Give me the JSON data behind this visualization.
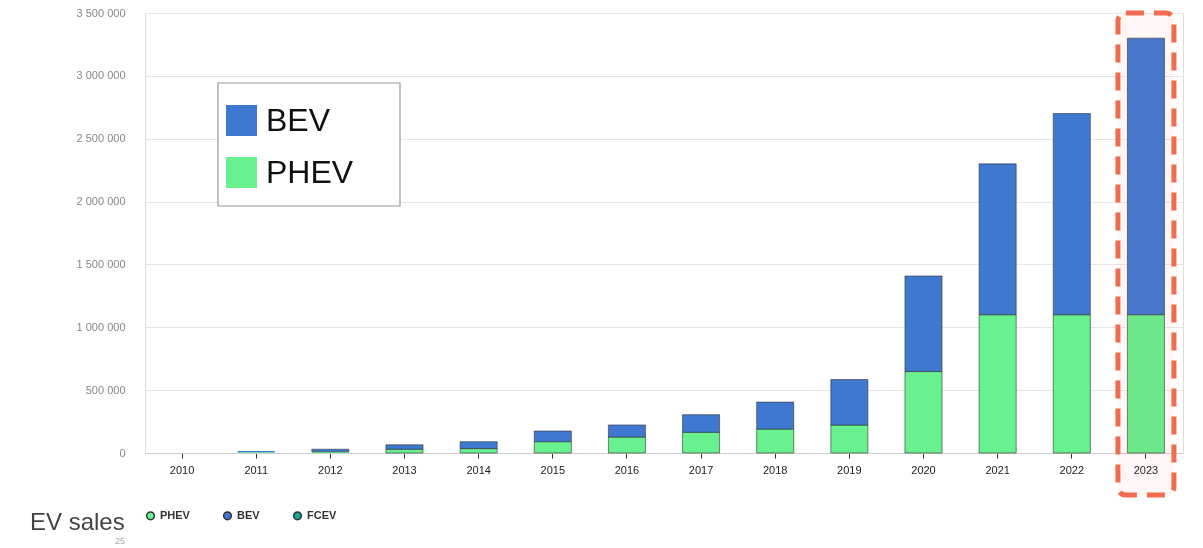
{
  "chart_data": {
    "type": "bar",
    "stacked": true,
    "categories": [
      "2010",
      "2011",
      "2012",
      "2013",
      "2014",
      "2015",
      "2016",
      "2017",
      "2018",
      "2019",
      "2020",
      "2021",
      "2022",
      "2023"
    ],
    "series": [
      {
        "name": "PHEV",
        "color": "#69f08f",
        "values": [
          0,
          5000,
          10000,
          30000,
          35000,
          90000,
          127000,
          165000,
          190000,
          222000,
          648000,
          1100000,
          1100000,
          1100000
        ]
      },
      {
        "name": "BEV",
        "color": "#3f78d1",
        "values": [
          0,
          10000,
          20000,
          35000,
          55000,
          85000,
          96000,
          140000,
          215000,
          362000,
          760000,
          1200000,
          1600000,
          2200000
        ]
      },
      {
        "name": "FCEV",
        "color": "#17a898",
        "values": [
          0,
          0,
          0,
          0,
          0,
          0,
          0,
          0,
          0,
          0,
          0,
          0,
          0,
          0
        ]
      }
    ],
    "ylim": [
      0,
      3500000
    ],
    "yticks": [
      {
        "value": 0,
        "label": "0"
      },
      {
        "value": 500000,
        "label": "500 000"
      },
      {
        "value": 1000000,
        "label": "1 000 000"
      },
      {
        "value": 1500000,
        "label": "1 500 000"
      },
      {
        "value": 2000000,
        "label": "2 000 000"
      },
      {
        "value": 2500000,
        "label": "2 500 000"
      },
      {
        "value": 3000000,
        "label": "3 000 000"
      },
      {
        "value": 3500000,
        "label": "3 500 000"
      }
    ],
    "grid": "y",
    "legend": "bottom",
    "bands": [
      {
        "axis": "x",
        "from": "2023",
        "to": "2023",
        "color": "#f26b50"
      }
    ],
    "annotations": [
      "EV sales",
      "25"
    ]
  }
}
